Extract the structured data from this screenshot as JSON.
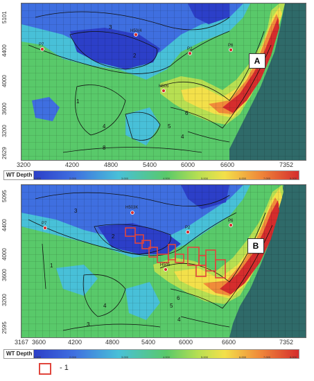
{
  "panels": [
    {
      "id": "A",
      "label": "A",
      "y_ticks": [
        "5101",
        "4400",
        "4000",
        "3600",
        "3200",
        "2629"
      ],
      "x_ticks": [
        "3200",
        "4200",
        "4800",
        "5400",
        "6000",
        "6600",
        "7352"
      ],
      "wells": [
        "H50(4",
        "P7",
        "P2",
        "P6",
        "H505"
      ],
      "contours": [
        "3",
        "2",
        "1",
        "4",
        "5",
        "6",
        "4",
        "8"
      ],
      "colorbar_title": "WT Depth",
      "colorbar_ticks": [
        "0.000",
        "2.000",
        "3.000",
        "4.000",
        "5.000",
        "6.000",
        "7.000",
        "8.000"
      ]
    },
    {
      "id": "B",
      "label": "B",
      "y_ticks": [
        "5095",
        "4400",
        "4000",
        "3600",
        "3200",
        "2595"
      ],
      "x_ticks": [
        "3167",
        "3600",
        "4200",
        "4800",
        "5400",
        "6000",
        "6600",
        "7352"
      ],
      "wells": [
        "H503K",
        "P7",
        "P2",
        "P6",
        "H505"
      ],
      "contours": [
        "3",
        "2",
        "1",
        "4",
        "5",
        "6",
        "3",
        "4"
      ],
      "colorbar_title": "WT Depth",
      "colorbar_ticks": [
        "0.000",
        "2.000",
        "3.000",
        "4.000",
        "5.000",
        "6.000",
        "7.000",
        "8.000"
      ]
    }
  ],
  "legend": {
    "label": "- 1",
    "color": "#e0453c"
  },
  "colors": {
    "deep_blue": "#2c3fc8",
    "blue": "#3f6fe0",
    "cyan": "#48c0d8",
    "green": "#59c96a",
    "yellow_green": "#b7df52",
    "yellow": "#f3e04a",
    "orange": "#f08b3a",
    "red": "#d52d2d",
    "background_cells": "#2f6a69"
  }
}
